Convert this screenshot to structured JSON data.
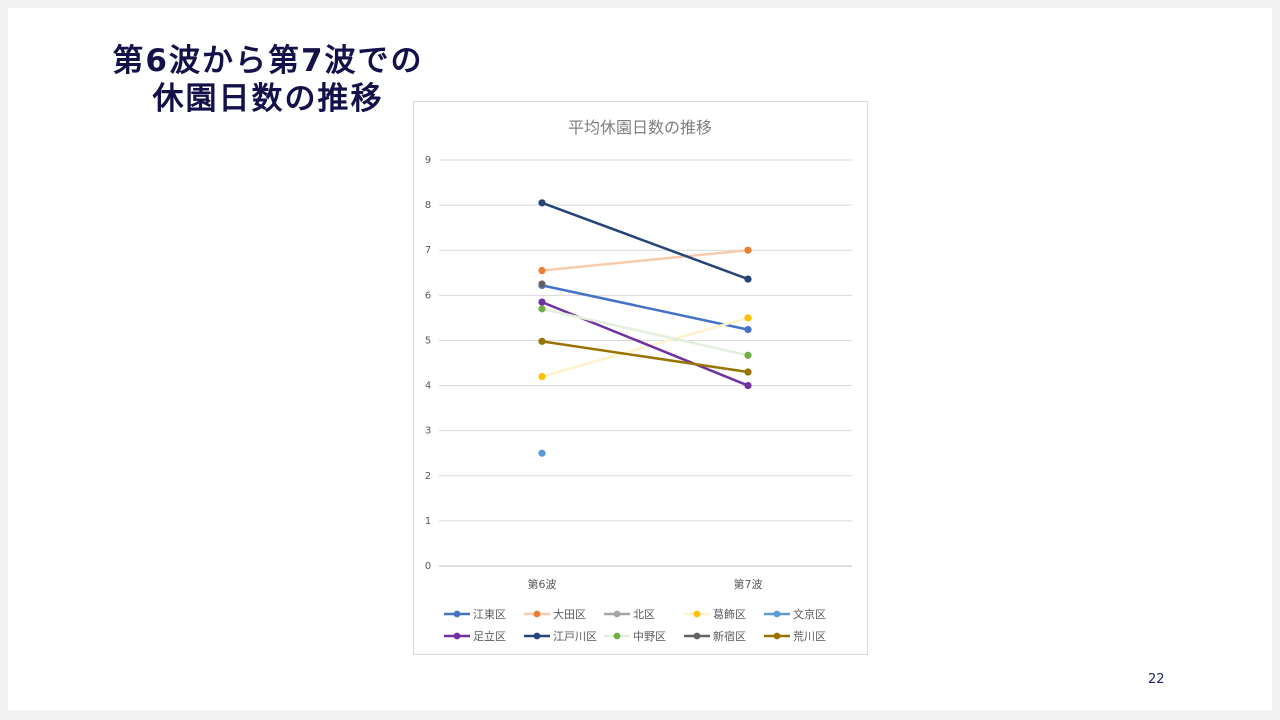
{
  "slide": {
    "title_line1": "第6波から第7波での",
    "title_line2": "休園日数の推移",
    "page_number": "22"
  },
  "chart_data": {
    "type": "line",
    "title": "平均休園日数の推移",
    "categories": [
      "第6波",
      "第7波"
    ],
    "ylim": [
      0,
      9
    ],
    "yticks": [
      0,
      1,
      2,
      3,
      4,
      5,
      6,
      7,
      8,
      9
    ],
    "grid": true,
    "legend_position": "bottom",
    "series": [
      {
        "name": "江東区",
        "values": [
          6.22,
          5.24
        ],
        "color": "#4472c4",
        "line": true
      },
      {
        "name": "大田区",
        "values": [
          6.55,
          7.0
        ],
        "color": "#ed7d31",
        "line_color": "#f8cbad",
        "line": true
      },
      {
        "name": "北区",
        "values": [
          6.25,
          null
        ],
        "color": "#a5a5a5",
        "line": true
      },
      {
        "name": "葛飾区",
        "values": [
          4.2,
          5.5
        ],
        "color": "#ffc000",
        "line_color": "#fff2cc",
        "line": true
      },
      {
        "name": "文京区",
        "values": [
          2.5,
          null
        ],
        "color": "#5b9bd5",
        "line": true
      },
      {
        "name": "足立区",
        "values": [
          5.85,
          4.0
        ],
        "color": "#7030a0",
        "line": true
      },
      {
        "name": "江戸川区",
        "values": [
          8.05,
          6.36
        ],
        "color": "#264478",
        "line": true
      },
      {
        "name": "中野区",
        "values": [
          5.7,
          4.67
        ],
        "color": "#70ad47",
        "line_color": "#e2efda",
        "line": true
      },
      {
        "name": "新宿区",
        "values": [
          6.25,
          null
        ],
        "color": "#636363",
        "line": true
      },
      {
        "name": "荒川区",
        "values": [
          4.98,
          4.3
        ],
        "color": "#997300",
        "line": true
      }
    ]
  }
}
